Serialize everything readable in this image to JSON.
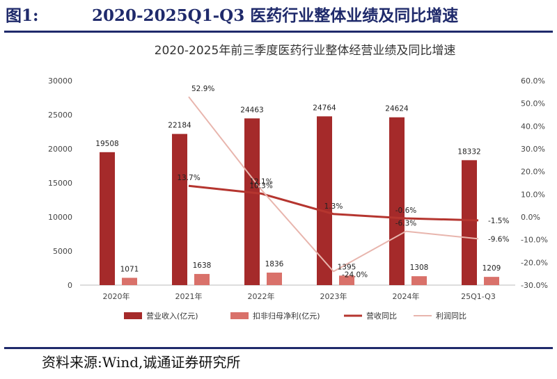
{
  "figure": {
    "label": "图1:",
    "title": "2020-2025Q1-Q3 医药行业整体业绩及同比增速",
    "source": "资料来源:Wind,诚通证券研究所"
  },
  "chart_data": {
    "type": "bar",
    "title": "2020-2025年前三季度医药行业整体经营业绩及同比增速",
    "categories": [
      "2020年",
      "2021年",
      "2022年",
      "2023年",
      "2024年",
      "25Q1-Q3"
    ],
    "series": [
      {
        "name": "营业收入(亿元)",
        "type": "bar",
        "axis": "left",
        "color": "#a52a2a",
        "values": [
          19508,
          22184,
          24463,
          24764,
          24624,
          18332
        ],
        "labels": [
          "19508",
          "22184",
          "24463",
          "24764",
          "24624",
          "18332"
        ]
      },
      {
        "name": "扣非归母净利(亿元)",
        "type": "bar",
        "axis": "left",
        "color": "#d9716a",
        "values": [
          1071,
          1638,
          1836,
          1395,
          1308,
          1209
        ],
        "labels": [
          "1071",
          "1638",
          "1836",
          "1395",
          "1308",
          "1209"
        ]
      },
      {
        "name": "营收同比",
        "type": "line",
        "axis": "right",
        "color": "#b5352f",
        "values": [
          null,
          13.7,
          10.3,
          1.3,
          -0.6,
          -1.5
        ],
        "labels": [
          null,
          "13.7%",
          "10.3%",
          "1.3%",
          "-0.6%",
          "-1.5%"
        ]
      },
      {
        "name": "利润同比",
        "type": "line",
        "axis": "right",
        "color": "#e8b5ad",
        "values": [
          null,
          52.9,
          12.1,
          -24.0,
          -6.3,
          -9.6
        ],
        "labels": [
          null,
          "52.9%",
          "12.1%",
          "-24.0%",
          "-6.3%",
          "-9.6%"
        ]
      }
    ],
    "ylim": [
      0,
      30000
    ],
    "yticks": [
      "0",
      "5000",
      "10000",
      "15000",
      "20000",
      "25000",
      "30000"
    ],
    "y2lim": [
      -30,
      60
    ],
    "y2ticks": [
      "-30.0%",
      "-20.0%",
      "-10.0%",
      "0.0%",
      "10.0%",
      "20.0%",
      "30.0%",
      "40.0%",
      "50.0%",
      "60.0%"
    ],
    "legend_position": "bottom",
    "grid": false
  }
}
